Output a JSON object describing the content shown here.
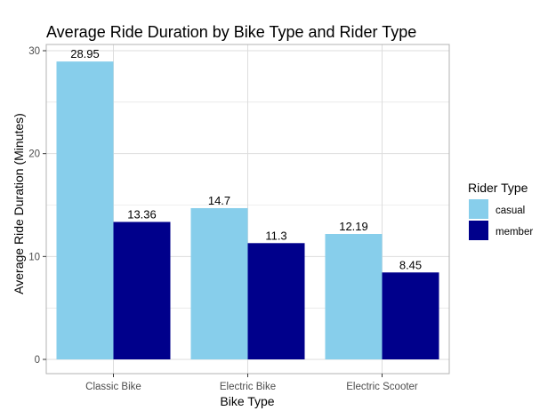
{
  "chart_data": {
    "type": "bar",
    "title": "Average Ride Duration by Bike Type and Rider Type",
    "xlabel": "Bike Type",
    "ylabel": "Average Ride Duration (Minutes)",
    "categories": [
      "Classic Bike",
      "Electric Bike",
      "Electric Scooter"
    ],
    "series": [
      {
        "name": "casual",
        "values": [
          28.95,
          14.7,
          12.19
        ],
        "labels": [
          "28.95",
          "14.7",
          "12.19"
        ],
        "color": "#87CEEB"
      },
      {
        "name": "member",
        "values": [
          13.36,
          11.3,
          8.45
        ],
        "labels": [
          "13.36",
          "11.3",
          "8.45"
        ],
        "color": "#00008B"
      }
    ],
    "ylim": [
      0,
      30
    ],
    "yticks": [
      0,
      10,
      20,
      30
    ],
    "grid": true,
    "legend": {
      "title": "Rider Type",
      "position": "right"
    },
    "colors": {
      "panel_border": "#b3b3b3",
      "grid": "#dddddd",
      "background": "#ffffff"
    }
  }
}
